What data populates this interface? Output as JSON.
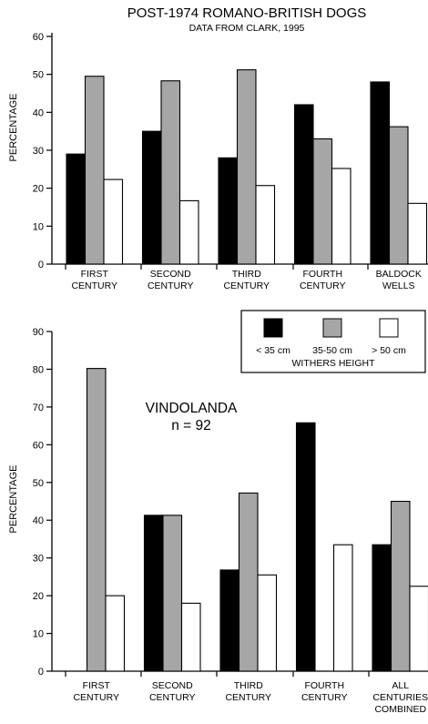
{
  "colors": {
    "under_35": "#000000",
    "35_50": "#a6a6a6",
    "over_50": "#ffffff",
    "outline": "#000000"
  },
  "legend": {
    "title": "WITHERS HEIGHT",
    "placement": "top-right of second chart",
    "entries": [
      "< 35 cm",
      "35-50 cm",
      "> 50 cm"
    ]
  },
  "chart_data": [
    {
      "type": "bar",
      "title": "POST-1974 ROMANO-BRITISH DOGS",
      "subtitle": "DATA FROM CLARK, 1995",
      "xlabel": "",
      "ylabel": "PERCENTAGE",
      "ylim": [
        0,
        60
      ],
      "yticks": [
        0,
        10,
        20,
        30,
        40,
        50,
        60
      ],
      "categories": [
        [
          "FIRST",
          "CENTURY"
        ],
        [
          "SECOND",
          "CENTURY"
        ],
        [
          "THIRD",
          "CENTURY"
        ],
        [
          "FOURTH",
          "CENTURY"
        ],
        [
          "BALDOCK",
          "WELLS"
        ]
      ],
      "series": [
        {
          "name": "< 35 cm",
          "values": [
            29,
            35,
            28,
            42,
            48
          ]
        },
        {
          "name": "35-50 cm",
          "values": [
            49.5,
            48.3,
            51.2,
            33,
            36.2
          ]
        },
        {
          "name": "> 50 cm",
          "values": [
            22.3,
            16.7,
            20.7,
            25.2,
            16
          ]
        }
      ],
      "grid": false,
      "legend": false
    },
    {
      "type": "bar",
      "title": "",
      "annotation": [
        "VINDOLANDA",
        "n = 92"
      ],
      "xlabel": "",
      "ylabel": "PERCENTAGE",
      "ylim": [
        0,
        90
      ],
      "yticks": [
        0,
        10,
        20,
        30,
        40,
        50,
        60,
        70,
        80,
        90
      ],
      "categories": [
        [
          "FIRST",
          "CENTURY"
        ],
        [
          "SECOND",
          "CENTURY"
        ],
        [
          "THIRD",
          "CENTURY"
        ],
        [
          "FOURTH",
          "CENTURY"
        ],
        [
          "ALL",
          "CENTURIES",
          "COMBINED"
        ]
      ],
      "series": [
        {
          "name": "< 35 cm",
          "values": [
            0,
            41.3,
            26.8,
            65.8,
            33.5
          ]
        },
        {
          "name": "35-50 cm",
          "values": [
            80.2,
            41.3,
            47.2,
            0,
            45
          ]
        },
        {
          "name": "> 50 cm",
          "values": [
            20,
            18,
            25.5,
            33.5,
            22.5
          ]
        }
      ],
      "grid": false,
      "legend": true
    }
  ]
}
